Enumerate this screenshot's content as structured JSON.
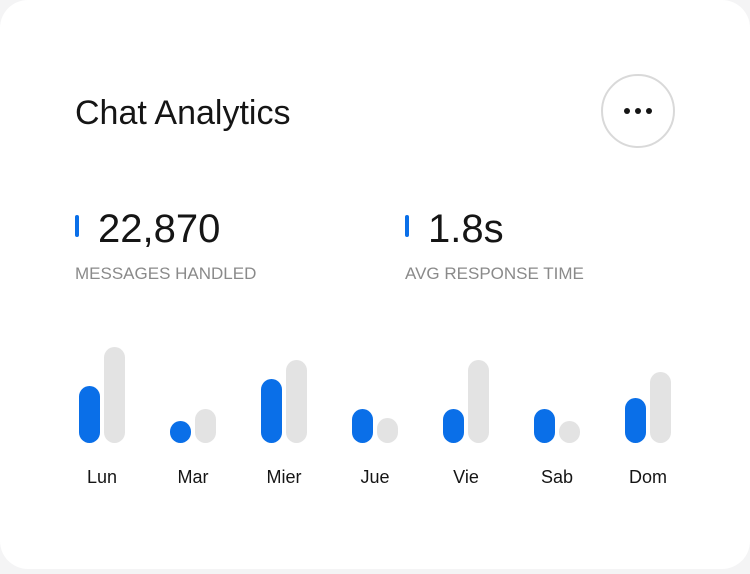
{
  "header": {
    "title": "Chat Analytics"
  },
  "stats": [
    {
      "value": "22,870",
      "label": "MESSAGES HANDLED",
      "color": "#0a6fe8"
    },
    {
      "value": "1.8s",
      "label": "AVG RESPONSE TIME",
      "color": "#0a6fe8"
    }
  ],
  "chart_data": {
    "type": "bar",
    "categories": [
      "Lun",
      "Mar",
      "Mier",
      "Jue",
      "Vie",
      "Sab",
      "Dom"
    ],
    "series": [
      {
        "color": "#0a6fe8",
        "values": [
          57,
          22,
          64,
          34,
          34,
          34,
          45
        ]
      },
      {
        "color": "#e3e3e3",
        "values": [
          96,
          34,
          83,
          25,
          83,
          22,
          71
        ]
      }
    ],
    "ylim": [
      0,
      100
    ]
  }
}
